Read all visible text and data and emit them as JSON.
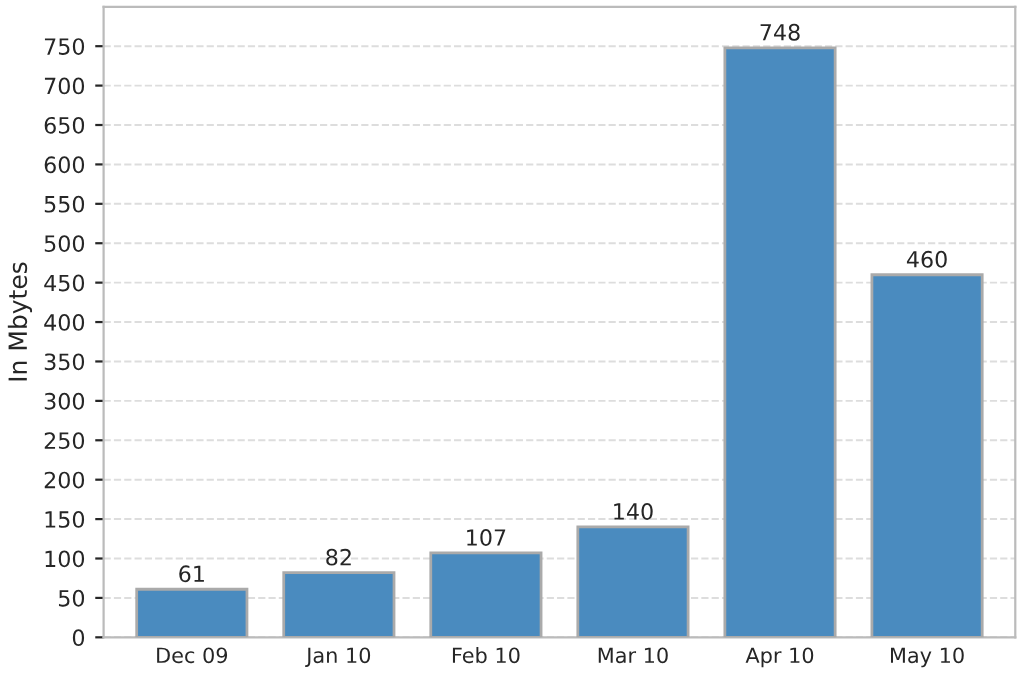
{
  "chart_data": {
    "type": "bar",
    "ylabel": "In Mbytes",
    "categories": [
      "Dec 09",
      "Jan 10",
      "Feb 10",
      "Mar 10",
      "Apr 10",
      "May 10"
    ],
    "values": [
      61,
      82,
      107,
      140,
      748,
      460
    ],
    "color": "#4a8bbf",
    "ylim": [
      0,
      800
    ],
    "yticks": [
      0,
      50,
      100,
      150,
      200,
      250,
      300,
      350,
      400,
      450,
      500,
      550,
      600,
      650,
      700,
      750
    ],
    "grid": "y",
    "data_labels": true
  }
}
